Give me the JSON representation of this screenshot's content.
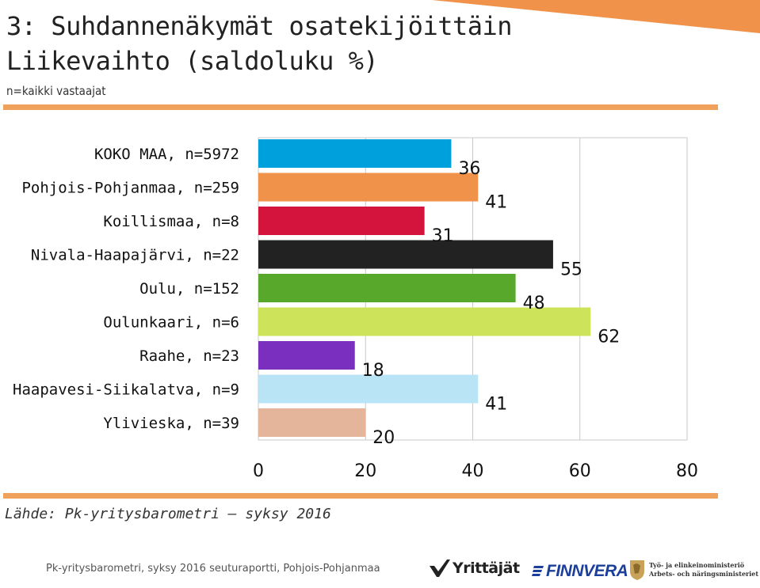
{
  "header": {
    "title_line1": "3: Suhdannenäkymät osatekijöittäin",
    "title_line2": "Liikevaihto (saldoluku %)",
    "subtitle": "n=kaikki vastaajat"
  },
  "chart_data": {
    "type": "bar",
    "orientation": "horizontal",
    "categories": [
      "KOKO MAA, n=5972",
      "Pohjois-Pohjanmaa, n=259",
      "Koillismaa, n=8",
      "Nivala-Haapajärvi, n=22",
      "Oulu, n=152",
      "Oulunkaari, n=6",
      "Raahe, n=23",
      "Haapavesi-Siikalatva, n=9",
      "Ylivieska, n=39"
    ],
    "values": [
      36,
      41,
      31,
      55,
      48,
      62,
      18,
      41,
      20
    ],
    "colors": [
      "#00a0dc",
      "#f0924a",
      "#d4143c",
      "#222222",
      "#58a82c",
      "#cce35a",
      "#7b2fbe",
      "#b9e4f6",
      "#e5b59b"
    ],
    "xlim": [
      0,
      80
    ],
    "xticks": [
      "0",
      "20",
      "40",
      "60",
      "80"
    ],
    "grid": true
  },
  "source": "Lähde: Pk-yritysbarometri – syksy 2016",
  "footer": {
    "text": "Pk-yritysbarometri, syksy 2016 seuturaportti, Pohjois-Pohjanmaa",
    "logos": {
      "yrittajat": "Yrittäjät",
      "finnvera": "FINNVERA",
      "tem_line1": "Työ- ja elinkeinoministeriö",
      "tem_line2": "Arbets- och näringsministeriet"
    }
  },
  "accent_color": "#f0a25c"
}
